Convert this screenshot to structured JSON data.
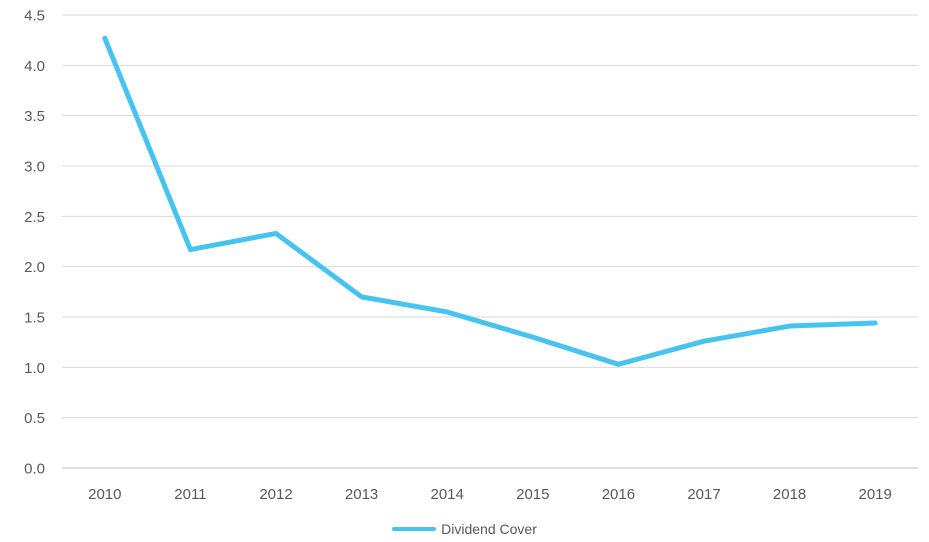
{
  "chart_data": {
    "type": "line",
    "categories": [
      "2010",
      "2011",
      "2012",
      "2013",
      "2014",
      "2015",
      "2016",
      "2017",
      "2018",
      "2019"
    ],
    "series": [
      {
        "name": "Dividend Cover",
        "color": "#47C3F0",
        "values": [
          4.27,
          2.17,
          2.33,
          1.7,
          1.55,
          1.3,
          1.03,
          1.26,
          1.41,
          1.44
        ]
      }
    ],
    "title": "",
    "xlabel": "",
    "ylabel": "",
    "ylim": [
      0,
      4.5
    ],
    "ytick_step": 0.5,
    "ytick_labels": [
      "0.0",
      "0.5",
      "1.0",
      "1.5",
      "2.0",
      "2.5",
      "3.0",
      "3.5",
      "4.0",
      "4.5"
    ],
    "grid": "horizontal",
    "legend_position": "bottom",
    "colors": {
      "grid": "#D9D9D9",
      "axis": "#BFBFBF",
      "tick_label": "#595959",
      "legend_text": "#595959",
      "background": "#FFFFFF"
    }
  }
}
